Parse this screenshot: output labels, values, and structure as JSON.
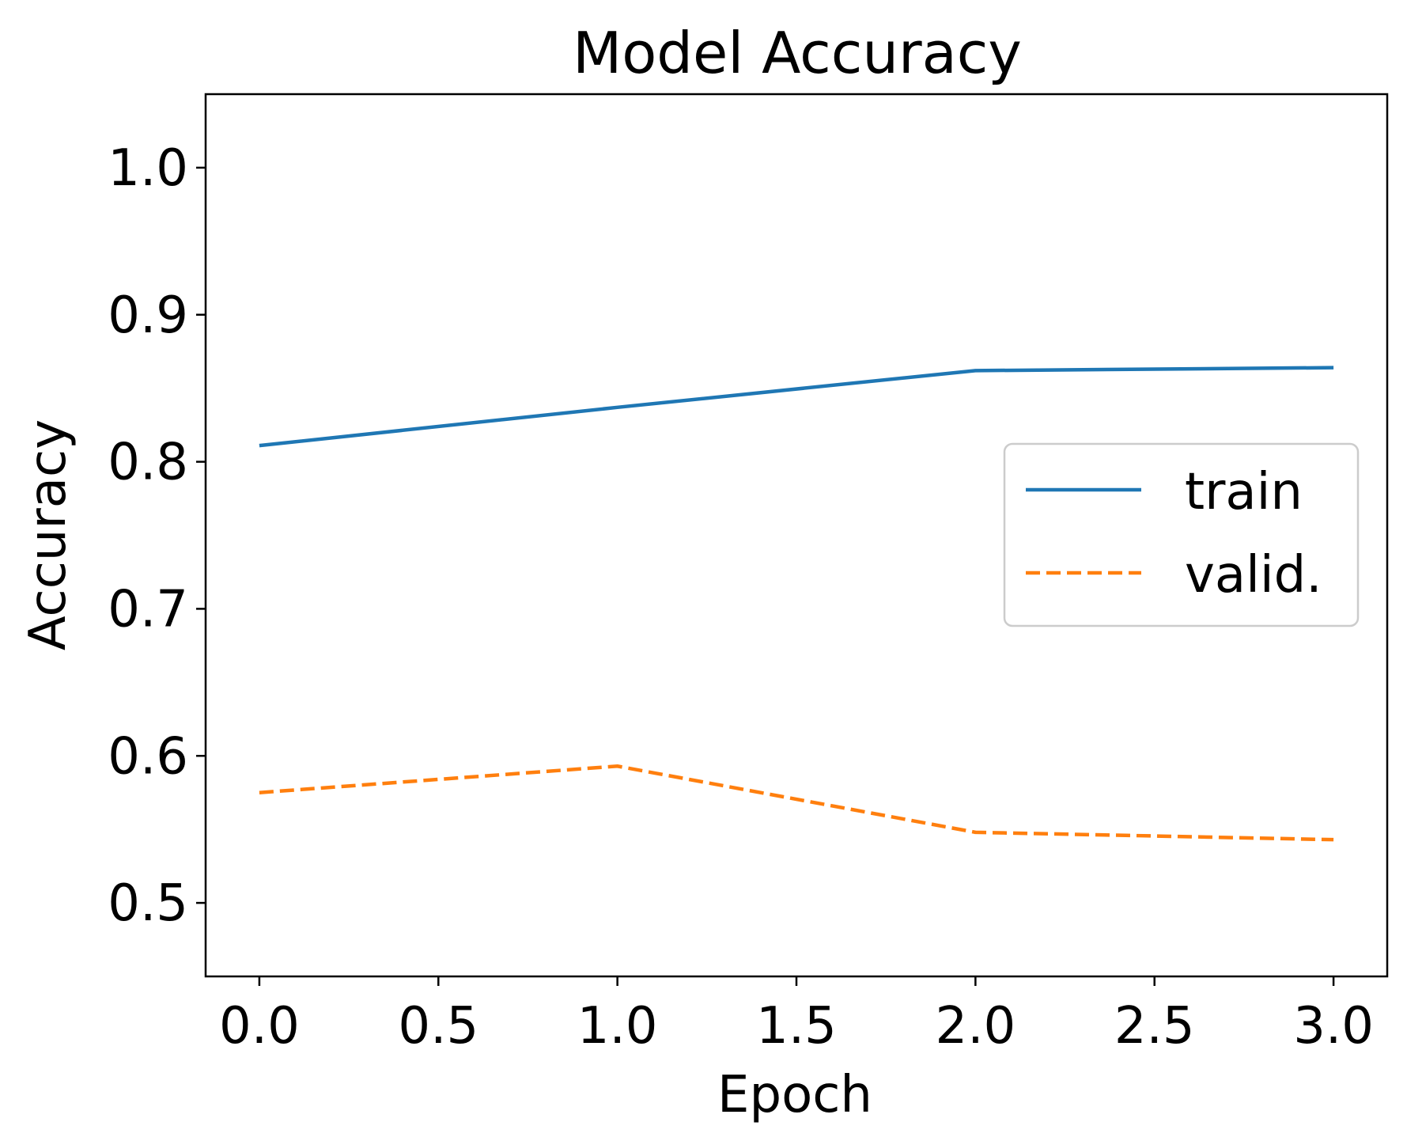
{
  "chart_data": {
    "type": "line",
    "title": "Model Accuracy",
    "xlabel": "Epoch",
    "ylabel": "Accuracy",
    "xlim": [
      -0.15,
      3.15
    ],
    "ylim": [
      0.45,
      1.05
    ],
    "xticks": [
      0.0,
      0.5,
      1.0,
      1.5,
      2.0,
      2.5,
      3.0
    ],
    "xtick_labels": [
      "0.0",
      "0.5",
      "1.0",
      "1.5",
      "2.0",
      "2.5",
      "3.0"
    ],
    "yticks": [
      0.5,
      0.6,
      0.7,
      0.8,
      0.9,
      1.0
    ],
    "ytick_labels": [
      "0.5",
      "0.6",
      "0.7",
      "0.8",
      "0.9",
      "1.0"
    ],
    "x": [
      0,
      1,
      2,
      3
    ],
    "series": [
      {
        "name": "train",
        "values": [
          0.811,
          0.837,
          0.862,
          0.864
        ],
        "color": "#1f77b4",
        "style": "solid"
      },
      {
        "name": "valid.",
        "values": [
          0.575,
          0.593,
          0.548,
          0.543
        ],
        "color": "#ff7f0e",
        "style": "dashed"
      }
    ],
    "grid": false,
    "legend_position": "center-right"
  }
}
